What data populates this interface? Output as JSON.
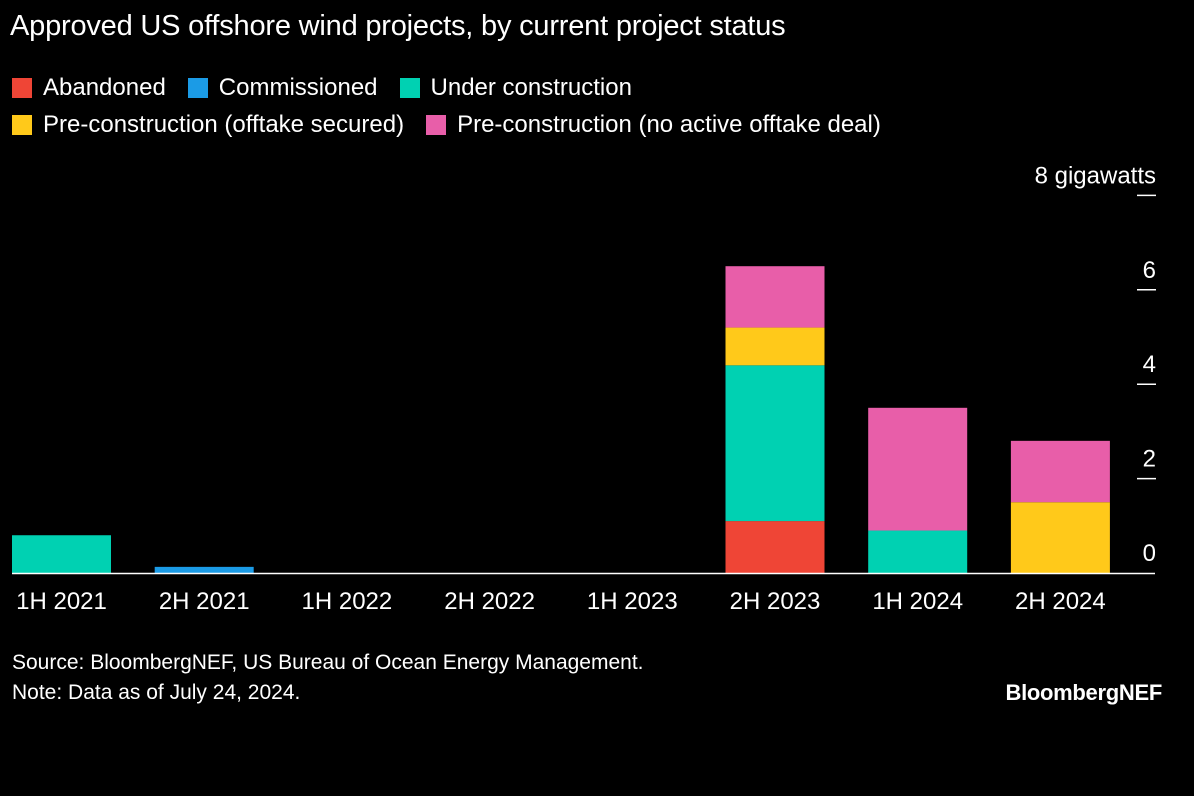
{
  "title": "Approved US offshore wind projects, by current project status",
  "legend": [
    {
      "label": "Abandoned",
      "color": "#ef4536"
    },
    {
      "label": "Commissioned",
      "color": "#1b9be6"
    },
    {
      "label": "Under construction",
      "color": "#00d1b2"
    },
    {
      "label": "Pre-construction (offtake secured)",
      "color": "#ffc91a"
    },
    {
      "label": "Pre-construction (no active offtake deal)",
      "color": "#e85ea9"
    }
  ],
  "chart_data": {
    "type": "bar",
    "stacked": true,
    "categories": [
      "1H 2021",
      "2H 2021",
      "1H 2022",
      "2H 2022",
      "1H 2023",
      "2H 2023",
      "1H 2024",
      "2H 2024"
    ],
    "series": [
      {
        "name": "Abandoned",
        "color": "#ef4536",
        "values": [
          0,
          0,
          0,
          0,
          0,
          1.1,
          0,
          0
        ]
      },
      {
        "name": "Commissioned",
        "color": "#1b9be6",
        "values": [
          0,
          0.13,
          0,
          0,
          0,
          0,
          0,
          0
        ]
      },
      {
        "name": "Under construction",
        "color": "#00d1b2",
        "values": [
          0.8,
          0,
          0,
          0,
          0,
          3.3,
          0.9,
          0
        ]
      },
      {
        "name": "Pre-construction (offtake secured)",
        "color": "#ffc91a",
        "values": [
          0,
          0,
          0,
          0,
          0,
          0.8,
          0,
          1.5
        ]
      },
      {
        "name": "Pre-construction (no active offtake deal)",
        "color": "#e85ea9",
        "values": [
          0,
          0,
          0,
          0,
          0,
          1.3,
          2.6,
          1.3
        ]
      }
    ],
    "y_ticks": [
      0,
      2,
      4,
      6,
      8
    ],
    "y_tick_labels": [
      "0",
      "2",
      "4",
      "6",
      "8 gigawatts"
    ],
    "ylim": [
      0,
      8
    ],
    "axis_position": "right",
    "grid": false
  },
  "footer": {
    "source": "Source: BloombergNEF, US Bureau of Ocean Energy Management.",
    "note": "Note: Data as of July 24, 2024.",
    "brand": "BloombergNEF"
  }
}
